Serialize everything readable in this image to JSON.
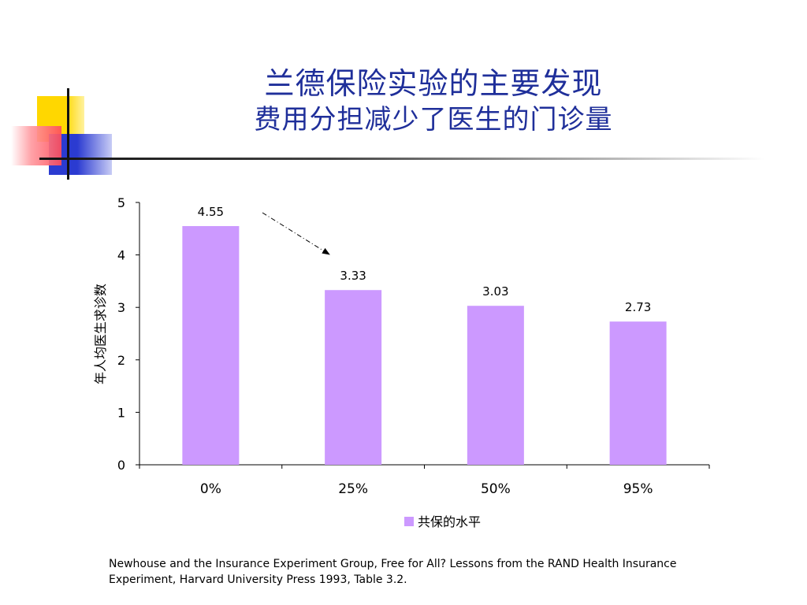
{
  "slide": {
    "title": "兰德保险实验的主要发现",
    "subtitle": "费用分担减少了医生的门诊量",
    "source_line1": "Newhouse and the Insurance Experiment Group, Free for All? Lessons from the RAND Health Insurance",
    "source_line2": "Experiment, Harvard University Press 1993, Table 3.2."
  },
  "colors": {
    "title": "#1f2f9a",
    "bar": "#cc99ff",
    "deco_yellow": "#ffd700",
    "deco_red": "#ff4d5a",
    "deco_blue": "#2b3bd1"
  },
  "chart_data": {
    "type": "bar",
    "categories": [
      "0%",
      "25%",
      "50%",
      "95%"
    ],
    "series": [
      {
        "name": "共保的水平",
        "values": [
          4.55,
          3.33,
          3.03,
          2.73
        ]
      }
    ],
    "data_labels": [
      "4.55",
      "3.33",
      "3.03",
      "2.73"
    ],
    "ylabel": "年人均医生求诊数",
    "xlabel": "",
    "ylim": [
      0,
      5
    ],
    "yticks": [
      "0",
      "1",
      "2",
      "3",
      "4",
      "5"
    ],
    "legend": {
      "label": "共保的水平",
      "placement": "bottom"
    },
    "grid": false,
    "annotation": "dash-dot arrow from 0% bar to 25% bar"
  }
}
